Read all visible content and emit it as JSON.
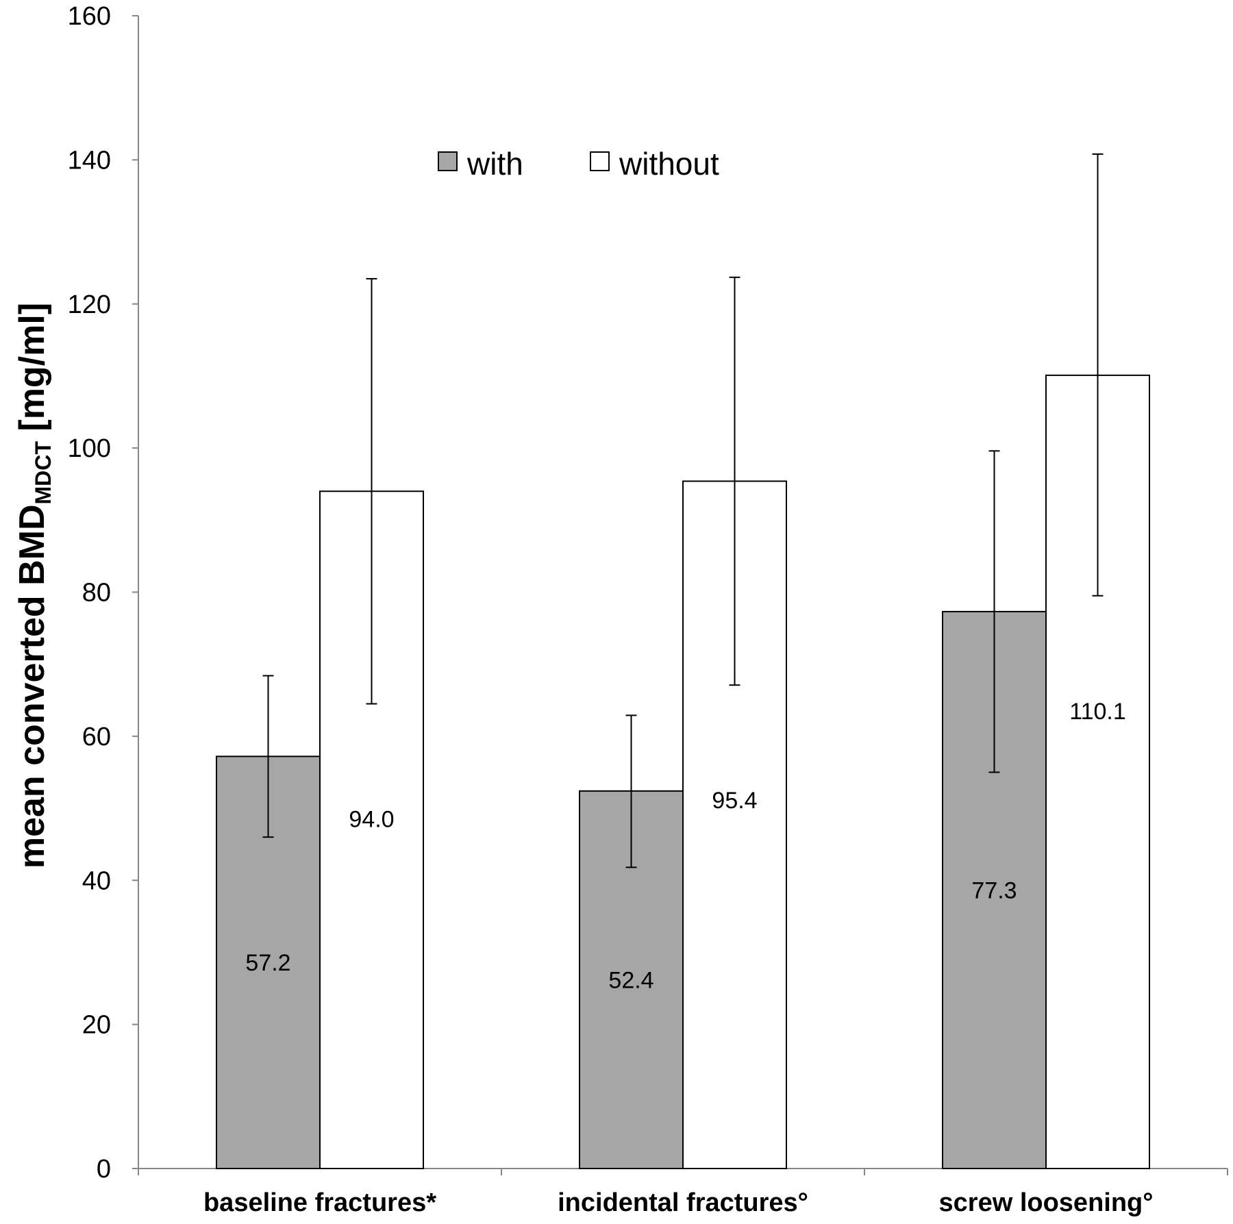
{
  "chart_data": {
    "type": "bar",
    "title": "",
    "xlabel": "",
    "ylabel": {
      "main": "mean converted BMD",
      "subscript": "MDCT",
      "unit": " [mg/ml]"
    },
    "ylim": [
      0,
      160
    ],
    "yticks": [
      "0",
      "20",
      "40",
      "60",
      "80",
      "100",
      "120",
      "140",
      "160"
    ],
    "grid": false,
    "legend_position": "top-center",
    "categories": [
      "baseline fractures*",
      "incidental fractures°",
      "screw loosening°"
    ],
    "series": [
      {
        "name": "with",
        "color": "#a6a6a6",
        "values": [
          57.2,
          52.4,
          77.3
        ],
        "value_labels": [
          "57.2",
          "52.4",
          "77.3"
        ],
        "error_low": [
          46.0,
          41.8,
          55.0
        ],
        "error_high": [
          68.4,
          62.9,
          99.6
        ]
      },
      {
        "name": "without",
        "color": "#ffffff",
        "values": [
          94.0,
          95.4,
          110.1
        ],
        "value_labels": [
          "94.0",
          "95.4",
          "110.1"
        ],
        "error_low": [
          64.5,
          67.1,
          79.5
        ],
        "error_high": [
          123.5,
          123.7,
          140.8
        ]
      }
    ]
  }
}
